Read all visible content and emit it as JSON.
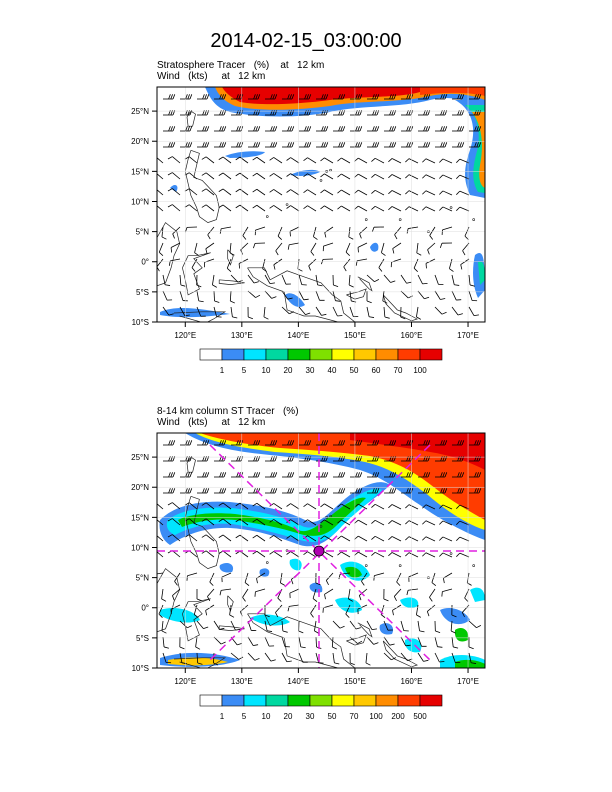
{
  "title": "2014-02-15_03:00:00",
  "panel1": {
    "line1": "Stratosphere Tracer   (%)    at   12 km",
    "line2": "Wind   (kts)     at   12 km",
    "colorbar_labels": [
      "1",
      "5",
      "10",
      "20",
      "30",
      "40",
      "50",
      "60",
      "70",
      "100"
    ],
    "colorbar_colors": [
      "#ffffff",
      "#3b8cf5",
      "#00e5ff",
      "#00d8a0",
      "#00c800",
      "#7fe000",
      "#ffff00",
      "#ffc800",
      "#ff8c00",
      "#ff3c00",
      "#e60000"
    ]
  },
  "panel2": {
    "line1": "8-14 km column ST Tracer   (%)",
    "line2": "Wind   (kts)     at   12 km",
    "colorbar_labels": [
      "1",
      "5",
      "10",
      "20",
      "30",
      "50",
      "70",
      "100",
      "200",
      "500"
    ],
    "colorbar_colors": [
      "#ffffff",
      "#3b8cf5",
      "#00e5ff",
      "#00d8a0",
      "#00c800",
      "#7fe000",
      "#ffff00",
      "#ffc800",
      "#ff8c00",
      "#ff3c00",
      "#e60000"
    ]
  },
  "lat_labels": [
    "25°N",
    "20°N",
    "15°N",
    "10°N",
    "5°N",
    "0°",
    "5°S",
    "10°S"
  ],
  "lon_labels": [
    "120°E",
    "130°E",
    "140°E",
    "150°E",
    "160°E",
    "170°E"
  ]
}
